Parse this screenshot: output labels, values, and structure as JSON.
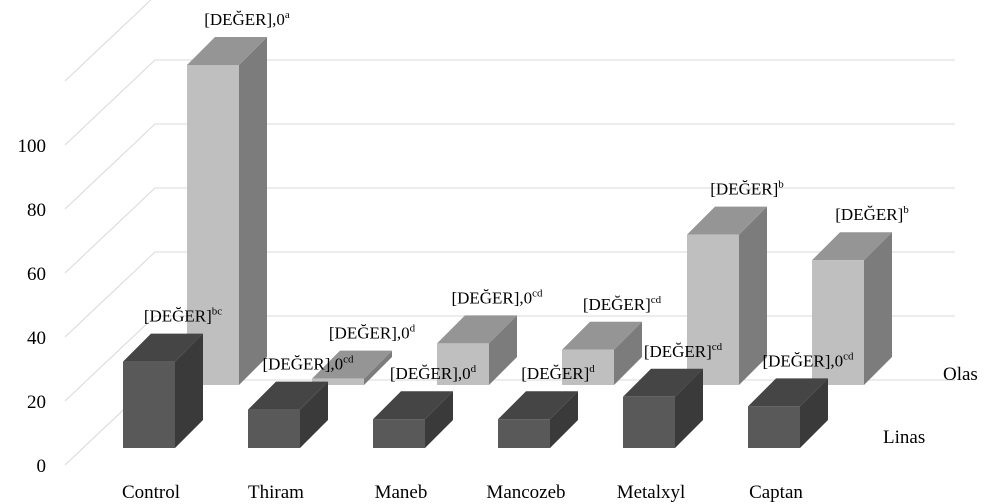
{
  "chart_data": {
    "type": "bar",
    "subtype": "3d-column",
    "title": "",
    "xlabel": "",
    "ylabel": "",
    "categories": [
      "Control",
      "Thiram",
      "Maneb",
      "Mancozeb",
      "Metalxyl",
      "Captan"
    ],
    "y_ticks": [
      "0",
      "20",
      "40",
      "60",
      "80",
      "100"
    ],
    "ylim": [
      0,
      120
    ],
    "grid": true,
    "series": [
      {
        "name": "Linas",
        "color": "#595959",
        "values": [
          27,
          12,
          9,
          9,
          16,
          13
        ],
        "labels": [
          {
            "text": "[DEĞER]",
            "sup": "bc"
          },
          {
            "text": "[DEĞER],0",
            "sup": "cd"
          },
          {
            "text": "[DEĞER],0",
            "sup": "d"
          },
          {
            "text": "[DEĞER]",
            "sup": "d"
          },
          {
            "text": "[DEĞER]",
            "sup": "cd"
          },
          {
            "text": "[DEĞER],0",
            "sup": "cd"
          }
        ]
      },
      {
        "name": "Olas",
        "color": "#bfbfbf",
        "values": [
          100,
          2,
          13,
          11,
          47,
          39
        ],
        "labels": [
          {
            "text": "[DEĞER],0",
            "sup": "a"
          },
          {
            "text": "[DEĞER],0",
            "sup": "d"
          },
          {
            "text": "[DEĞER],0",
            "sup": "cd"
          },
          {
            "text": "[DEĞER]",
            "sup": "cd"
          },
          {
            "text": "[DEĞER]",
            "sup": "b"
          },
          {
            "text": "[DEĞER]",
            "sup": "b"
          }
        ]
      }
    ]
  }
}
